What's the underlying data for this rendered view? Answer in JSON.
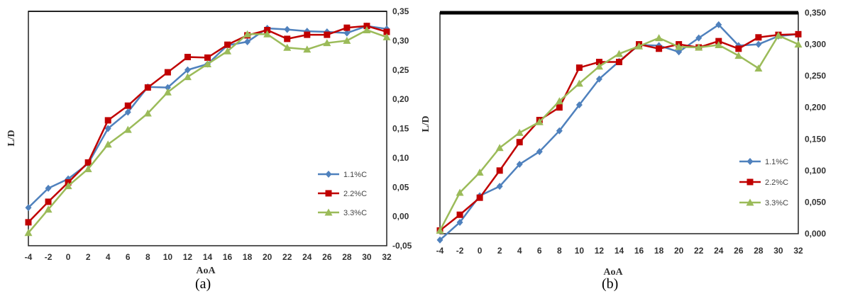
{
  "captions": [
    "(a)",
    "(b)"
  ],
  "colors": {
    "s1": "#4f81bd",
    "s2": "#c00000",
    "s3": "#9bbb59"
  },
  "chart_data": [
    {
      "type": "line",
      "title": "",
      "xlabel": "AoA",
      "ylabel": "L/D",
      "x": [
        -4,
        -2,
        0,
        2,
        4,
        6,
        8,
        10,
        12,
        14,
        16,
        18,
        20,
        22,
        24,
        26,
        28,
        30,
        32
      ],
      "xlim": [
        -4,
        32
      ],
      "ylim": [
        -0.05,
        0.35
      ],
      "yticks": [
        "-0,05",
        "0,00",
        "0,05",
        "0,10",
        "0,15",
        "0,20",
        "0,25",
        "0,30",
        "0,35"
      ],
      "ytick_values": [
        -0.05,
        0,
        0.05,
        0.1,
        0.15,
        0.2,
        0.25,
        0.3,
        0.35
      ],
      "y_axis_side": "right",
      "grid": false,
      "legend_position": "right",
      "series": [
        {
          "name": "1.1%C",
          "marker": "diamond",
          "color": "#4f81bd",
          "values": [
            0.015,
            0.048,
            0.064,
            0.09,
            0.15,
            0.178,
            0.221,
            0.22,
            0.25,
            0.26,
            0.292,
            0.298,
            0.321,
            0.319,
            0.316,
            0.315,
            0.313,
            0.325,
            0.32
          ]
        },
        {
          "name": "2.2%C",
          "marker": "square",
          "color": "#c00000",
          "values": [
            -0.01,
            0.025,
            0.058,
            0.092,
            0.164,
            0.189,
            0.22,
            0.246,
            0.272,
            0.271,
            0.293,
            0.309,
            0.318,
            0.303,
            0.31,
            0.31,
            0.322,
            0.325,
            0.315
          ]
        },
        {
          "name": "3.3%C",
          "marker": "triangle",
          "color": "#9bbb59",
          "values": [
            -0.028,
            0.012,
            0.052,
            0.081,
            0.123,
            0.148,
            0.176,
            0.212,
            0.238,
            0.26,
            0.282,
            0.311,
            0.311,
            0.288,
            0.285,
            0.296,
            0.3,
            0.318,
            0.306
          ]
        }
      ]
    },
    {
      "type": "line",
      "title": "",
      "xlabel": "AoA",
      "ylabel": "L/D",
      "x": [
        -4,
        -2,
        0,
        2,
        4,
        6,
        8,
        10,
        12,
        14,
        16,
        18,
        20,
        22,
        24,
        26,
        28,
        30,
        32
      ],
      "xlim": [
        -4,
        32
      ],
      "ylim": [
        0,
        0.35
      ],
      "yticks": [
        "0,000",
        "0,050",
        "0,100",
        "0,150",
        "0,200",
        "0,250",
        "0,300",
        "0,350"
      ],
      "ytick_values": [
        0,
        0.05,
        0.1,
        0.15,
        0.2,
        0.25,
        0.3,
        0.35
      ],
      "y_axis_side": "right",
      "grid": false,
      "legend_position": "right",
      "series": [
        {
          "name": "1.1%C",
          "marker": "diamond",
          "color": "#4f81bd",
          "values": [
            -0.01,
            0.018,
            0.06,
            0.075,
            0.11,
            0.13,
            0.163,
            0.204,
            0.245,
            0.273,
            0.299,
            0.298,
            0.288,
            0.31,
            0.331,
            0.298,
            0.3,
            0.313,
            0.316
          ]
        },
        {
          "name": "2.2%C",
          "marker": "square",
          "color": "#c00000",
          "values": [
            0.005,
            0.03,
            0.057,
            0.1,
            0.145,
            0.18,
            0.2,
            0.263,
            0.272,
            0.272,
            0.3,
            0.293,
            0.3,
            0.295,
            0.305,
            0.293,
            0.311,
            0.315,
            0.316
          ]
        },
        {
          "name": "3.3%C",
          "marker": "triangle",
          "color": "#9bbb59",
          "values": [
            0.005,
            0.065,
            0.097,
            0.136,
            0.16,
            0.177,
            0.21,
            0.238,
            0.265,
            0.285,
            0.297,
            0.31,
            0.296,
            0.295,
            0.299,
            0.282,
            0.262,
            0.314,
            0.3
          ]
        }
      ]
    }
  ]
}
